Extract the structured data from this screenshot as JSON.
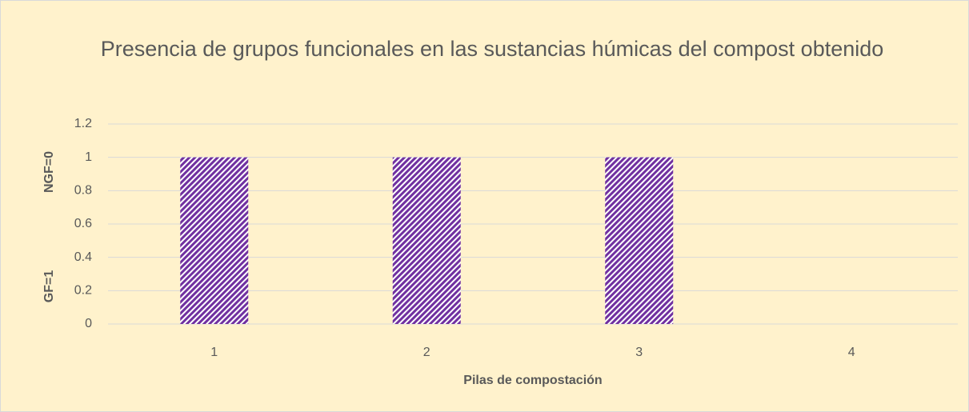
{
  "chart_data": {
    "type": "bar",
    "title": "Presencia de grupos funcionales en las sustancias húmicas del compost obtenido",
    "xlabel": "Pilas de compostación",
    "ylabels": [
      "GF=1",
      "NGF=0"
    ],
    "categories": [
      "1",
      "2",
      "3",
      "4"
    ],
    "values": [
      1,
      1,
      1,
      0
    ],
    "color": "#7030a0",
    "ylim": [
      0,
      1.2
    ],
    "yticks": [
      0,
      0.2,
      0.4,
      0.6,
      0.8,
      1,
      1.2
    ],
    "grid": true
  }
}
